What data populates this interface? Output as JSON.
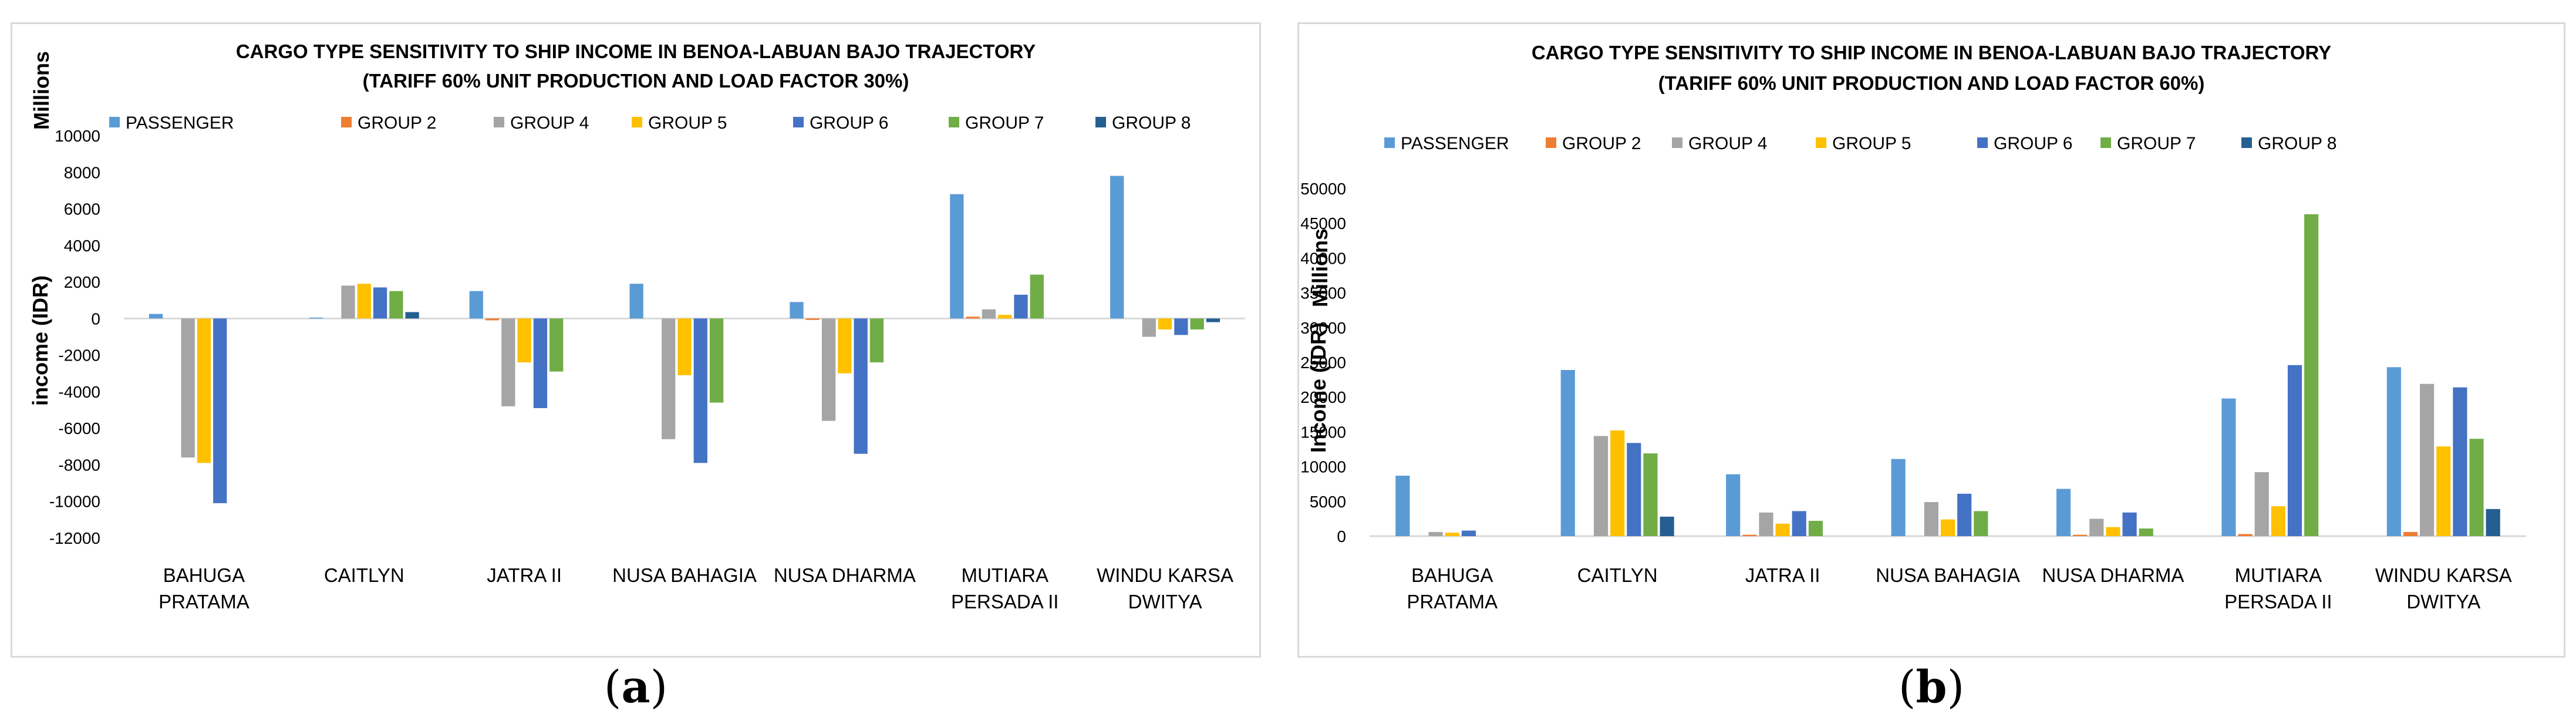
{
  "captions": {
    "a_letter": "a",
    "b_letter": "b"
  },
  "colors": {
    "PASSENGER": "#5b9bd5",
    "GROUP 2": "#ed7d31",
    "GROUP 4": "#a5a5a5",
    "GROUP 5": "#ffc000",
    "GROUP 6": "#4472c4",
    "GROUP 7": "#70ad47",
    "GROUP 8": "#255e91"
  },
  "chart_data": [
    {
      "type": "bar",
      "title": "CARGO TYPE SENSITIVITY TO SHIP INCOME IN BENOA-LABUAN BAJO TRAJECTORY",
      "subtitle": "(TARIFF 60% UNIT PRODUCTION AND LOAD FACTOR 30%)",
      "ylabel": "income (IDR)",
      "yunit": "Millions",
      "ylim": [
        -12000,
        10000
      ],
      "yticks": [
        -12000,
        -10000,
        -8000,
        -6000,
        -4000,
        -2000,
        0,
        2000,
        4000,
        6000,
        8000,
        10000
      ],
      "ytick_labels": [
        "-12000",
        "-10000",
        "-8000",
        "-6000",
        "-4000",
        "-2000",
        "0",
        "2000",
        "4000",
        "6000",
        "8000",
        "10000"
      ],
      "legend_position": "top",
      "categories": [
        {
          "line1": "BAHUGA",
          "line2": "PRATAMA"
        },
        {
          "line1": "CAITLYN",
          "line2": ""
        },
        {
          "line1": "JATRA II",
          "line2": ""
        },
        {
          "line1": "NUSA BAHAGIA",
          "line2": ""
        },
        {
          "line1": "NUSA DHARMA",
          "line2": ""
        },
        {
          "line1": "MUTIARA",
          "line2": "PERSADA II"
        },
        {
          "line1": "WINDU KARSA",
          "line2": "DWITYA"
        }
      ],
      "series": [
        {
          "name": "PASSENGER",
          "values": [
            250,
            50,
            1500,
            1900,
            900,
            6800,
            7800
          ]
        },
        {
          "name": "GROUP 2",
          "values": [
            0,
            0,
            -100,
            0,
            -80,
            100,
            0
          ]
        },
        {
          "name": "GROUP 4",
          "values": [
            -7600,
            1800,
            -4800,
            -6600,
            -5600,
            500,
            -1000
          ]
        },
        {
          "name": "GROUP 5",
          "values": [
            -7900,
            1900,
            -2400,
            -3100,
            -3000,
            200,
            -600
          ]
        },
        {
          "name": "GROUP 6",
          "values": [
            -10100,
            1700,
            -4900,
            -7900,
            -7400,
            1300,
            -900
          ]
        },
        {
          "name": "GROUP 7",
          "values": [
            0,
            1500,
            -2900,
            -4600,
            -2400,
            2400,
            -600
          ]
        },
        {
          "name": "GROUP 8",
          "values": [
            0,
            350,
            0,
            0,
            0,
            0,
            -200
          ]
        }
      ]
    },
    {
      "type": "bar",
      "title": "CARGO TYPE SENSITIVITY TO SHIP INCOME IN BENOA-LABUAN BAJO TRAJECTORY",
      "subtitle": "(TARIFF 60% UNIT PRODUCTION AND LOAD FACTOR 60%)",
      "ylabel": "Income (IDR)",
      "yunit": "Millions",
      "ylim": [
        0,
        50000
      ],
      "yticks": [
        0,
        5000,
        10000,
        15000,
        20000,
        25000,
        30000,
        35000,
        40000,
        45000,
        50000
      ],
      "ytick_labels": [
        "0",
        "5000",
        "10000",
        "15000",
        "20000",
        "25000",
        "30000",
        "35000",
        "40000",
        "45000",
        "50000"
      ],
      "legend_position": "top",
      "categories": [
        {
          "line1": "BAHUGA",
          "line2": "PRATAMA"
        },
        {
          "line1": "CAITLYN",
          "line2": ""
        },
        {
          "line1": "JATRA II",
          "line2": ""
        },
        {
          "line1": "NUSA BAHAGIA",
          "line2": ""
        },
        {
          "line1": "NUSA DHARMA",
          "line2": ""
        },
        {
          "line1": "MUTIARA",
          "line2": "PERSADA II"
        },
        {
          "line1": "WINDU KARSA",
          "line2": "DWITYA"
        }
      ],
      "series": [
        {
          "name": "PASSENGER",
          "values": [
            8700,
            23900,
            8900,
            11100,
            6800,
            19800,
            24300
          ]
        },
        {
          "name": "GROUP 2",
          "values": [
            0,
            0,
            200,
            0,
            200,
            300,
            600
          ]
        },
        {
          "name": "GROUP 4",
          "values": [
            600,
            14400,
            3400,
            4900,
            2500,
            9200,
            21900
          ]
        },
        {
          "name": "GROUP 5",
          "values": [
            500,
            15200,
            1800,
            2400,
            1300,
            4300,
            12900
          ]
        },
        {
          "name": "GROUP 6",
          "values": [
            800,
            13400,
            3600,
            6100,
            3400,
            24600,
            21400
          ]
        },
        {
          "name": "GROUP 7",
          "values": [
            0,
            11900,
            2200,
            3600,
            1100,
            46300,
            14000
          ]
        },
        {
          "name": "GROUP 8",
          "values": [
            0,
            2800,
            0,
            0,
            0,
            0,
            3900
          ]
        }
      ]
    }
  ]
}
